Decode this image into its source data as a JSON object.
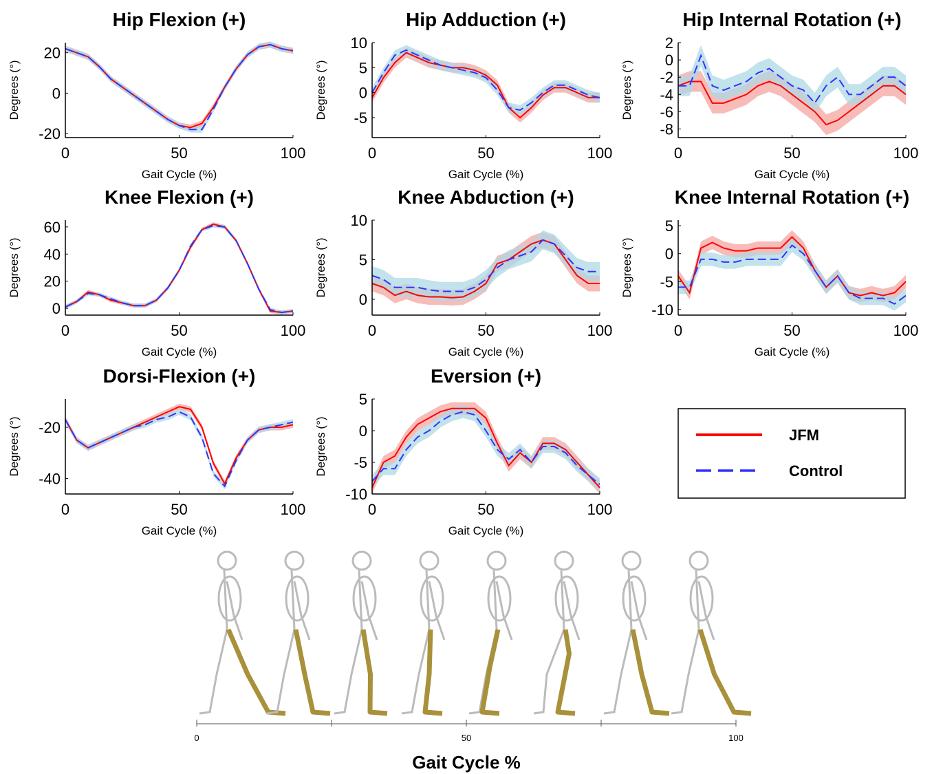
{
  "chart_data": [
    {
      "type": "line",
      "title": "Hip Flexion (+)",
      "xlabel": "Gait Cycle (%)",
      "ylabel": "Degrees (°)",
      "x": [
        0,
        5,
        10,
        15,
        20,
        25,
        30,
        35,
        40,
        45,
        50,
        55,
        60,
        65,
        70,
        75,
        80,
        85,
        90,
        95,
        100
      ],
      "xlim": [
        0,
        100
      ],
      "xticks": [
        0,
        50,
        100
      ],
      "ylim": [
        -22,
        25
      ],
      "yticks": [
        -20,
        0,
        20
      ],
      "series": [
        {
          "name": "JFM",
          "color": "#ff0000",
          "band_color": "#f4a6a0",
          "dash": false,
          "sd": 1.5,
          "values": [
            22,
            20,
            18,
            13,
            7,
            3,
            -1,
            -5,
            -9,
            -13,
            -16,
            -17,
            -15,
            -7,
            3,
            12,
            19,
            23,
            24,
            22,
            21
          ]
        },
        {
          "name": "Control",
          "color": "#3333ff",
          "band_color": "#add8e6",
          "dash": true,
          "sd": 1.5,
          "values": [
            22,
            20,
            18,
            13,
            7,
            3,
            -1,
            -5,
            -9,
            -13,
            -16,
            -18,
            -18,
            -8,
            3,
            12,
            19,
            23,
            24,
            22,
            21
          ]
        }
      ]
    },
    {
      "type": "line",
      "title": "Hip Adduction (+)",
      "xlabel": "Gait Cycle (%)",
      "ylabel": "Degrees (°)",
      "x": [
        0,
        5,
        10,
        15,
        20,
        25,
        30,
        35,
        40,
        45,
        50,
        55,
        60,
        65,
        70,
        75,
        80,
        85,
        90,
        95,
        100
      ],
      "xlim": [
        0,
        100
      ],
      "xticks": [
        0,
        50,
        100
      ],
      "ylim": [
        -9,
        10
      ],
      "yticks": [
        -5,
        0,
        5,
        10
      ],
      "series": [
        {
          "name": "JFM",
          "color": "#ff0000",
          "band_color": "#f4a6a0",
          "dash": false,
          "sd": 1,
          "values": [
            -1,
            3,
            6,
            8,
            7,
            6,
            5.5,
            5,
            5,
            4.5,
            3.5,
            1.5,
            -3,
            -5,
            -3,
            -0.5,
            1,
            1,
            0,
            -1,
            -1
          ]
        },
        {
          "name": "Control",
          "color": "#3333ff",
          "band_color": "#add8e6",
          "dash": true,
          "sd": 1,
          "values": [
            0,
            4,
            7.5,
            8.5,
            7.5,
            6.5,
            5.5,
            5,
            4.5,
            4,
            3,
            0.5,
            -3,
            -3.5,
            -2,
            0,
            1.5,
            1.5,
            0.5,
            -0.5,
            -1
          ]
        }
      ]
    },
    {
      "type": "line",
      "title": "Hip Internal Rotation (+)",
      "xlabel": "Gait Cycle (%)",
      "ylabel": "Degrees (°)",
      "x": [
        0,
        5,
        10,
        15,
        20,
        25,
        30,
        35,
        40,
        45,
        50,
        55,
        60,
        65,
        70,
        75,
        80,
        85,
        90,
        95,
        100
      ],
      "xlim": [
        0,
        100
      ],
      "xticks": [
        0,
        50,
        100
      ],
      "ylim": [
        -9,
        2
      ],
      "yticks": [
        -8,
        -6,
        -4,
        -2,
        0,
        2
      ],
      "series": [
        {
          "name": "JFM",
          "color": "#ff0000",
          "band_color": "#f4a6a0",
          "dash": false,
          "sd": 1.2,
          "values": [
            -3,
            -2.5,
            -2.5,
            -5,
            -5,
            -4.5,
            -4,
            -3,
            -2.5,
            -3,
            -4,
            -5,
            -6,
            -7.5,
            -7,
            -6,
            -5,
            -4,
            -3,
            -3,
            -4
          ]
        },
        {
          "name": "Control",
          "color": "#3333ff",
          "band_color": "#add8e6",
          "dash": true,
          "sd": 1.2,
          "values": [
            -3,
            -3,
            0.5,
            -3,
            -3.5,
            -3,
            -2.5,
            -1.5,
            -1,
            -2,
            -3,
            -3.5,
            -5,
            -3,
            -2,
            -4,
            -4,
            -3,
            -2,
            -2,
            -3
          ]
        }
      ]
    },
    {
      "type": "line",
      "title": "Knee Flexion (+)",
      "xlabel": "Gait Cycle (%)",
      "ylabel": "Degrees (°)",
      "x": [
        0,
        5,
        10,
        15,
        20,
        25,
        30,
        35,
        40,
        45,
        50,
        55,
        60,
        65,
        70,
        75,
        80,
        85,
        90,
        95,
        100
      ],
      "xlim": [
        0,
        100
      ],
      "xticks": [
        0,
        50,
        100
      ],
      "ylim": [
        -5,
        65
      ],
      "yticks": [
        0,
        20,
        40,
        60
      ],
      "series": [
        {
          "name": "JFM",
          "color": "#ff0000",
          "band_color": "#f4a6a0",
          "dash": false,
          "sd": 1.5,
          "values": [
            1,
            5,
            12,
            10,
            6,
            4,
            2,
            2,
            6,
            15,
            28,
            45,
            58,
            62,
            60,
            50,
            33,
            14,
            -2,
            -3,
            -2
          ]
        },
        {
          "name": "Control",
          "color": "#3333ff",
          "band_color": "#add8e6",
          "dash": true,
          "sd": 1.5,
          "values": [
            1,
            5,
            11,
            10,
            7,
            4,
            2,
            2,
            6,
            15,
            28,
            46,
            58,
            61,
            60,
            50,
            33,
            14,
            -1,
            -3,
            -2
          ]
        }
      ]
    },
    {
      "type": "line",
      "title": "Knee Abduction (+)",
      "xlabel": "Gait Cycle (%)",
      "ylabel": "Degrees (°)",
      "x": [
        0,
        5,
        10,
        15,
        20,
        25,
        30,
        35,
        40,
        45,
        50,
        55,
        60,
        65,
        70,
        75,
        80,
        85,
        90,
        95,
        100
      ],
      "xlim": [
        0,
        100
      ],
      "xticks": [
        0,
        50,
        100
      ],
      "ylim": [
        -2,
        10
      ],
      "yticks": [
        0,
        5,
        10
      ],
      "series": [
        {
          "name": "JFM",
          "color": "#ff0000",
          "band_color": "#f4a6a0",
          "dash": false,
          "sd": 1,
          "values": [
            2,
            1.5,
            0.5,
            1,
            0.5,
            0.3,
            0.3,
            0.2,
            0.3,
            1,
            2,
            4.5,
            5,
            6,
            7,
            7.5,
            7,
            5,
            3,
            2,
            2
          ]
        },
        {
          "name": "Control",
          "color": "#3333ff",
          "band_color": "#add8e6",
          "dash": true,
          "sd": 1.2,
          "values": [
            3,
            2.5,
            1.5,
            1.5,
            1.5,
            1.2,
            1,
            1,
            1,
            1.5,
            2.5,
            4,
            5,
            5.5,
            6,
            7.5,
            7,
            5.5,
            4,
            3.5,
            3.5
          ]
        }
      ]
    },
    {
      "type": "line",
      "title": "Knee Internal Rotation (+)",
      "xlabel": "Gait Cycle (%)",
      "ylabel": "Degrees (°)",
      "x": [
        0,
        5,
        10,
        15,
        20,
        25,
        30,
        35,
        40,
        45,
        50,
        55,
        60,
        65,
        70,
        75,
        80,
        85,
        90,
        95,
        100
      ],
      "xlim": [
        0,
        100
      ],
      "xticks": [
        0,
        50,
        100
      ],
      "ylim": [
        -11,
        6
      ],
      "yticks": [
        -10,
        -5,
        0,
        5
      ],
      "series": [
        {
          "name": "JFM",
          "color": "#ff0000",
          "band_color": "#f4a6a0",
          "dash": false,
          "sd": 1.2,
          "values": [
            -4,
            -7,
            1,
            2,
            1,
            0.5,
            0.5,
            1,
            1,
            1,
            3,
            1,
            -3,
            -6,
            -4,
            -7,
            -7.5,
            -7,
            -7.5,
            -7,
            -5
          ]
        },
        {
          "name": "Control",
          "color": "#3333ff",
          "band_color": "#add8e6",
          "dash": true,
          "sd": 1.2,
          "values": [
            -6,
            -6,
            -1,
            -1,
            -1.5,
            -1.5,
            -1,
            -1,
            -1,
            -1,
            1.5,
            0,
            -3,
            -6,
            -4,
            -7,
            -8,
            -8,
            -8,
            -9,
            -7.5
          ]
        }
      ]
    },
    {
      "type": "line",
      "title": "Dorsi-Flexion (+)",
      "xlabel": "Gait Cycle (%)",
      "ylabel": "Degrees (°)",
      "x": [
        0,
        5,
        10,
        15,
        20,
        25,
        30,
        35,
        40,
        45,
        50,
        55,
        60,
        65,
        70,
        75,
        80,
        85,
        90,
        95,
        100
      ],
      "xlim": [
        0,
        100
      ],
      "xticks": [
        0,
        50,
        100
      ],
      "ylim": [
        -46,
        -9
      ],
      "yticks": [
        -40,
        -20
      ],
      "series": [
        {
          "name": "JFM",
          "color": "#ff0000",
          "band_color": "#f4a6a0",
          "dash": false,
          "sd": 1.2,
          "values": [
            -17,
            -25,
            -28,
            -26,
            -24,
            -22,
            -20,
            -18,
            -16,
            -14,
            -12,
            -13,
            -20,
            -34,
            -42,
            -32,
            -25,
            -21,
            -20,
            -20,
            -19
          ]
        },
        {
          "name": "Control",
          "color": "#3333ff",
          "band_color": "#add8e6",
          "dash": true,
          "sd": 1.2,
          "values": [
            -17,
            -25,
            -28,
            -26,
            -24,
            -22,
            -20,
            -19,
            -17,
            -16,
            -14,
            -16,
            -24,
            -38,
            -43,
            -33,
            -25,
            -21,
            -20,
            -19,
            -18
          ]
        }
      ]
    },
    {
      "type": "line",
      "title": "Eversion (+)",
      "xlabel": "Gait Cycle (%)",
      "ylabel": "Degrees (°)",
      "x": [
        0,
        5,
        10,
        15,
        20,
        25,
        30,
        35,
        40,
        45,
        50,
        55,
        60,
        65,
        70,
        75,
        80,
        85,
        90,
        95,
        100
      ],
      "xlim": [
        0,
        100
      ],
      "xticks": [
        0,
        50,
        100
      ],
      "ylim": [
        -10,
        5
      ],
      "yticks": [
        -10,
        -5,
        0,
        5
      ],
      "series": [
        {
          "name": "JFM",
          "color": "#ff0000",
          "band_color": "#f4a6a0",
          "dash": false,
          "sd": 1,
          "values": [
            -9,
            -5,
            -4,
            -1,
            1,
            2,
            3,
            3.5,
            3.5,
            3.5,
            2,
            -2,
            -5.5,
            -3.5,
            -5,
            -2,
            -2,
            -3,
            -5,
            -7,
            -9
          ]
        },
        {
          "name": "Control",
          "color": "#3333ff",
          "band_color": "#add8e6",
          "dash": true,
          "sd": 1,
          "values": [
            -8,
            -6,
            -6,
            -3,
            -1,
            0,
            1.5,
            2.5,
            3,
            2.5,
            0,
            -3,
            -4.5,
            -3,
            -5,
            -2.5,
            -2.5,
            -3.5,
            -5.5,
            -7,
            -8.5
          ]
        }
      ]
    }
  ],
  "illustration_axis": {
    "xlim": [
      0,
      100
    ],
    "xticks": [
      0,
      50,
      100
    ],
    "minor_ticks": [
      25,
      75
    ],
    "xlabel": "Gait Cycle %"
  }
}
